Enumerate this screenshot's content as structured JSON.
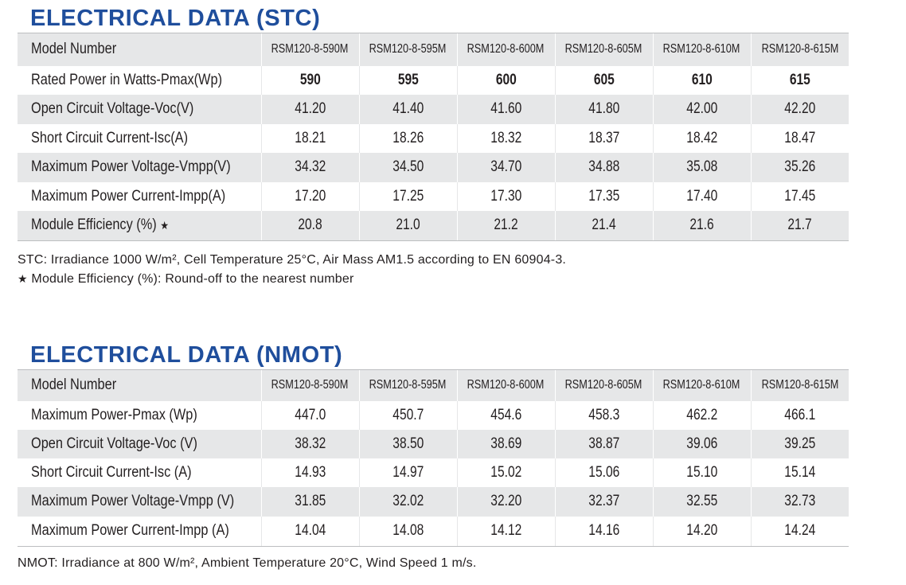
{
  "stc": {
    "title": "ELECTRICAL DATA (STC)",
    "header_label": "Model Number",
    "models": [
      "RSM120-8-590M",
      "RSM120-8-595M",
      "RSM120-8-600M",
      "RSM120-8-605M",
      "RSM120-8-610M",
      "RSM120-8-615M"
    ],
    "rows": [
      {
        "label": "Rated Power in Watts-Pmax(Wp)",
        "values": [
          "590",
          "595",
          "600",
          "605",
          "610",
          "615"
        ]
      },
      {
        "label": "Open Circuit Voltage-Voc(V)",
        "values": [
          "41.20",
          "41.40",
          "41.60",
          "41.80",
          "42.00",
          "42.20"
        ]
      },
      {
        "label": "Short Circuit Current-Isc(A)",
        "values": [
          "18.21",
          "18.26",
          "18.32",
          "18.37",
          "18.42",
          "18.47"
        ]
      },
      {
        "label": "Maximum Power Voltage-Vmpp(V)",
        "values": [
          "34.32",
          "34.50",
          "34.70",
          "34.88",
          "35.08",
          "35.26"
        ]
      },
      {
        "label": "Maximum Power Current-Impp(A)",
        "values": [
          "17.20",
          "17.25",
          "17.30",
          "17.35",
          "17.40",
          "17.45"
        ]
      },
      {
        "label": "Module Efficiency (%)",
        "values": [
          "20.8",
          "21.0",
          "21.2",
          "21.4",
          "21.6",
          "21.7"
        ]
      }
    ],
    "star": "★",
    "footnote_1": "STC: Irradiance 1000 W/m², Cell Temperature 25°C, Air Mass AM1.5 according to EN 60904-3.",
    "footnote_2": "Module Efficiency (%): Round-off to the nearest number"
  },
  "nmot": {
    "title": "ELECTRICAL DATA (NMOT)",
    "header_label": "Model Number",
    "models": [
      "RSM120-8-590M",
      "RSM120-8-595M",
      "RSM120-8-600M",
      "RSM120-8-605M",
      "RSM120-8-610M",
      "RSM120-8-615M"
    ],
    "rows": [
      {
        "label": "Maximum Power-Pmax (Wp)",
        "values": [
          "447.0",
          "450.7",
          "454.6",
          "458.3",
          "462.2",
          "466.1"
        ]
      },
      {
        "label": "Open Circuit Voltage-Voc (V)",
        "values": [
          "38.32",
          "38.50",
          "38.69",
          "38.87",
          "39.06",
          "39.25"
        ]
      },
      {
        "label": "Short Circuit Current-Isc (A)",
        "values": [
          "14.93",
          "14.97",
          "15.02",
          "15.06",
          "15.10",
          "15.14"
        ]
      },
      {
        "label": "Maximum Power Voltage-Vmpp (V)",
        "values": [
          "31.85",
          "32.02",
          "32.20",
          "32.37",
          "32.55",
          "32.73"
        ]
      },
      {
        "label": "Maximum Power Current-Impp (A)",
        "values": [
          "14.04",
          "14.08",
          "14.12",
          "14.16",
          "14.20",
          "14.24"
        ]
      }
    ],
    "footnote_1": "NMOT: Irradiance at 800 W/m², Ambient Temperature 20°C, Wind Speed 1 m/s."
  },
  "colors": {
    "title": "#1f4e9c",
    "shade": "#e6e7e8",
    "text": "#231f20"
  }
}
